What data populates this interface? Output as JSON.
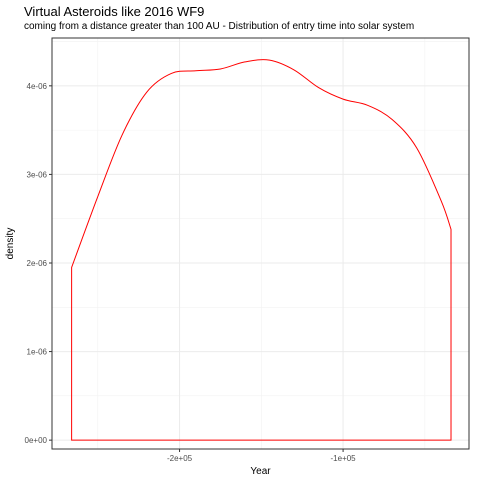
{
  "chart_data": {
    "type": "area",
    "title": "Virtual Asteroids like 2016 WF9",
    "subtitle": "coming from a distance greater than 100 AU - Distribution of entry time into solar system",
    "xlabel": "Year",
    "ylabel": "density",
    "xlim": [
      -278000,
      -23000
    ],
    "ylim": [
      -1e-07,
      4.54e-06
    ],
    "x_ticks": [
      -200000,
      -100000
    ],
    "x_tick_labels": [
      "-2e+05",
      "-1e+05"
    ],
    "y_ticks": [
      0,
      1e-06,
      2e-06,
      3e-06,
      4e-06
    ],
    "y_tick_labels": [
      "0e+00",
      "1e-06",
      "2e-06",
      "3e-06",
      "4e-06"
    ],
    "grid": true,
    "line_color": "#ff0000",
    "series": [
      {
        "x": [
          -266000,
          -250000,
          -235000,
          -220000,
          -205000,
          -190000,
          -175000,
          -160000,
          -145000,
          -130000,
          -115000,
          -100000,
          -85000,
          -70000,
          -55000,
          -40000,
          -34000
        ],
        "y": [
          1.95e-06,
          2.75e-06,
          3.45e-06,
          3.93e-06,
          4.14e-06,
          4.17e-06,
          4.19e-06,
          4.27e-06,
          4.29e-06,
          4.18e-06,
          3.98e-06,
          3.85e-06,
          3.78e-06,
          3.62e-06,
          3.3e-06,
          2.7e-06,
          2.38e-06
        ]
      }
    ]
  }
}
